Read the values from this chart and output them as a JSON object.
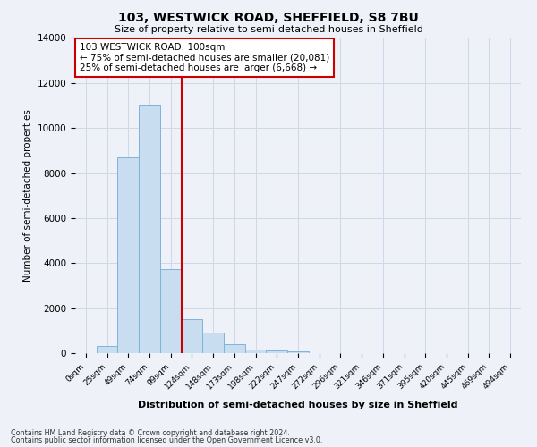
{
  "title": "103, WESTWICK ROAD, SHEFFIELD, S8 7BU",
  "subtitle": "Size of property relative to semi-detached houses in Sheffield",
  "bar_labels": [
    "0sqm",
    "25sqm",
    "49sqm",
    "74sqm",
    "99sqm",
    "124sqm",
    "148sqm",
    "173sqm",
    "198sqm",
    "222sqm",
    "247sqm",
    "272sqm",
    "296sqm",
    "321sqm",
    "346sqm",
    "371sqm",
    "395sqm",
    "420sqm",
    "445sqm",
    "469sqm",
    "494sqm"
  ],
  "bar_values": [
    0,
    300,
    8700,
    11000,
    3750,
    1500,
    900,
    400,
    150,
    100,
    80,
    0,
    0,
    0,
    0,
    0,
    0,
    0,
    0,
    0,
    0
  ],
  "bar_color": "#c8ddf0",
  "bar_edge_color": "#7fb3d8",
  "ylim": [
    0,
    14000
  ],
  "yticks": [
    0,
    2000,
    4000,
    6000,
    8000,
    10000,
    12000,
    14000
  ],
  "ylabel": "Number of semi-detached properties",
  "xlabel": "Distribution of semi-detached houses by size in Sheffield",
  "property_line_x": 4.5,
  "annotation_title": "103 WESTWICK ROAD: 100sqm",
  "annotation_line1": "← 75% of semi-detached houses are smaller (20,081)",
  "annotation_line2": "25% of semi-detached houses are larger (6,668) →",
  "annotation_color": "#cc0000",
  "grid_color": "#d0d8e8",
  "footer_line1": "Contains HM Land Registry data © Crown copyright and database right 2024.",
  "footer_line2": "Contains public sector information licensed under the Open Government Licence v3.0.",
  "background_color": "#eef2f8"
}
